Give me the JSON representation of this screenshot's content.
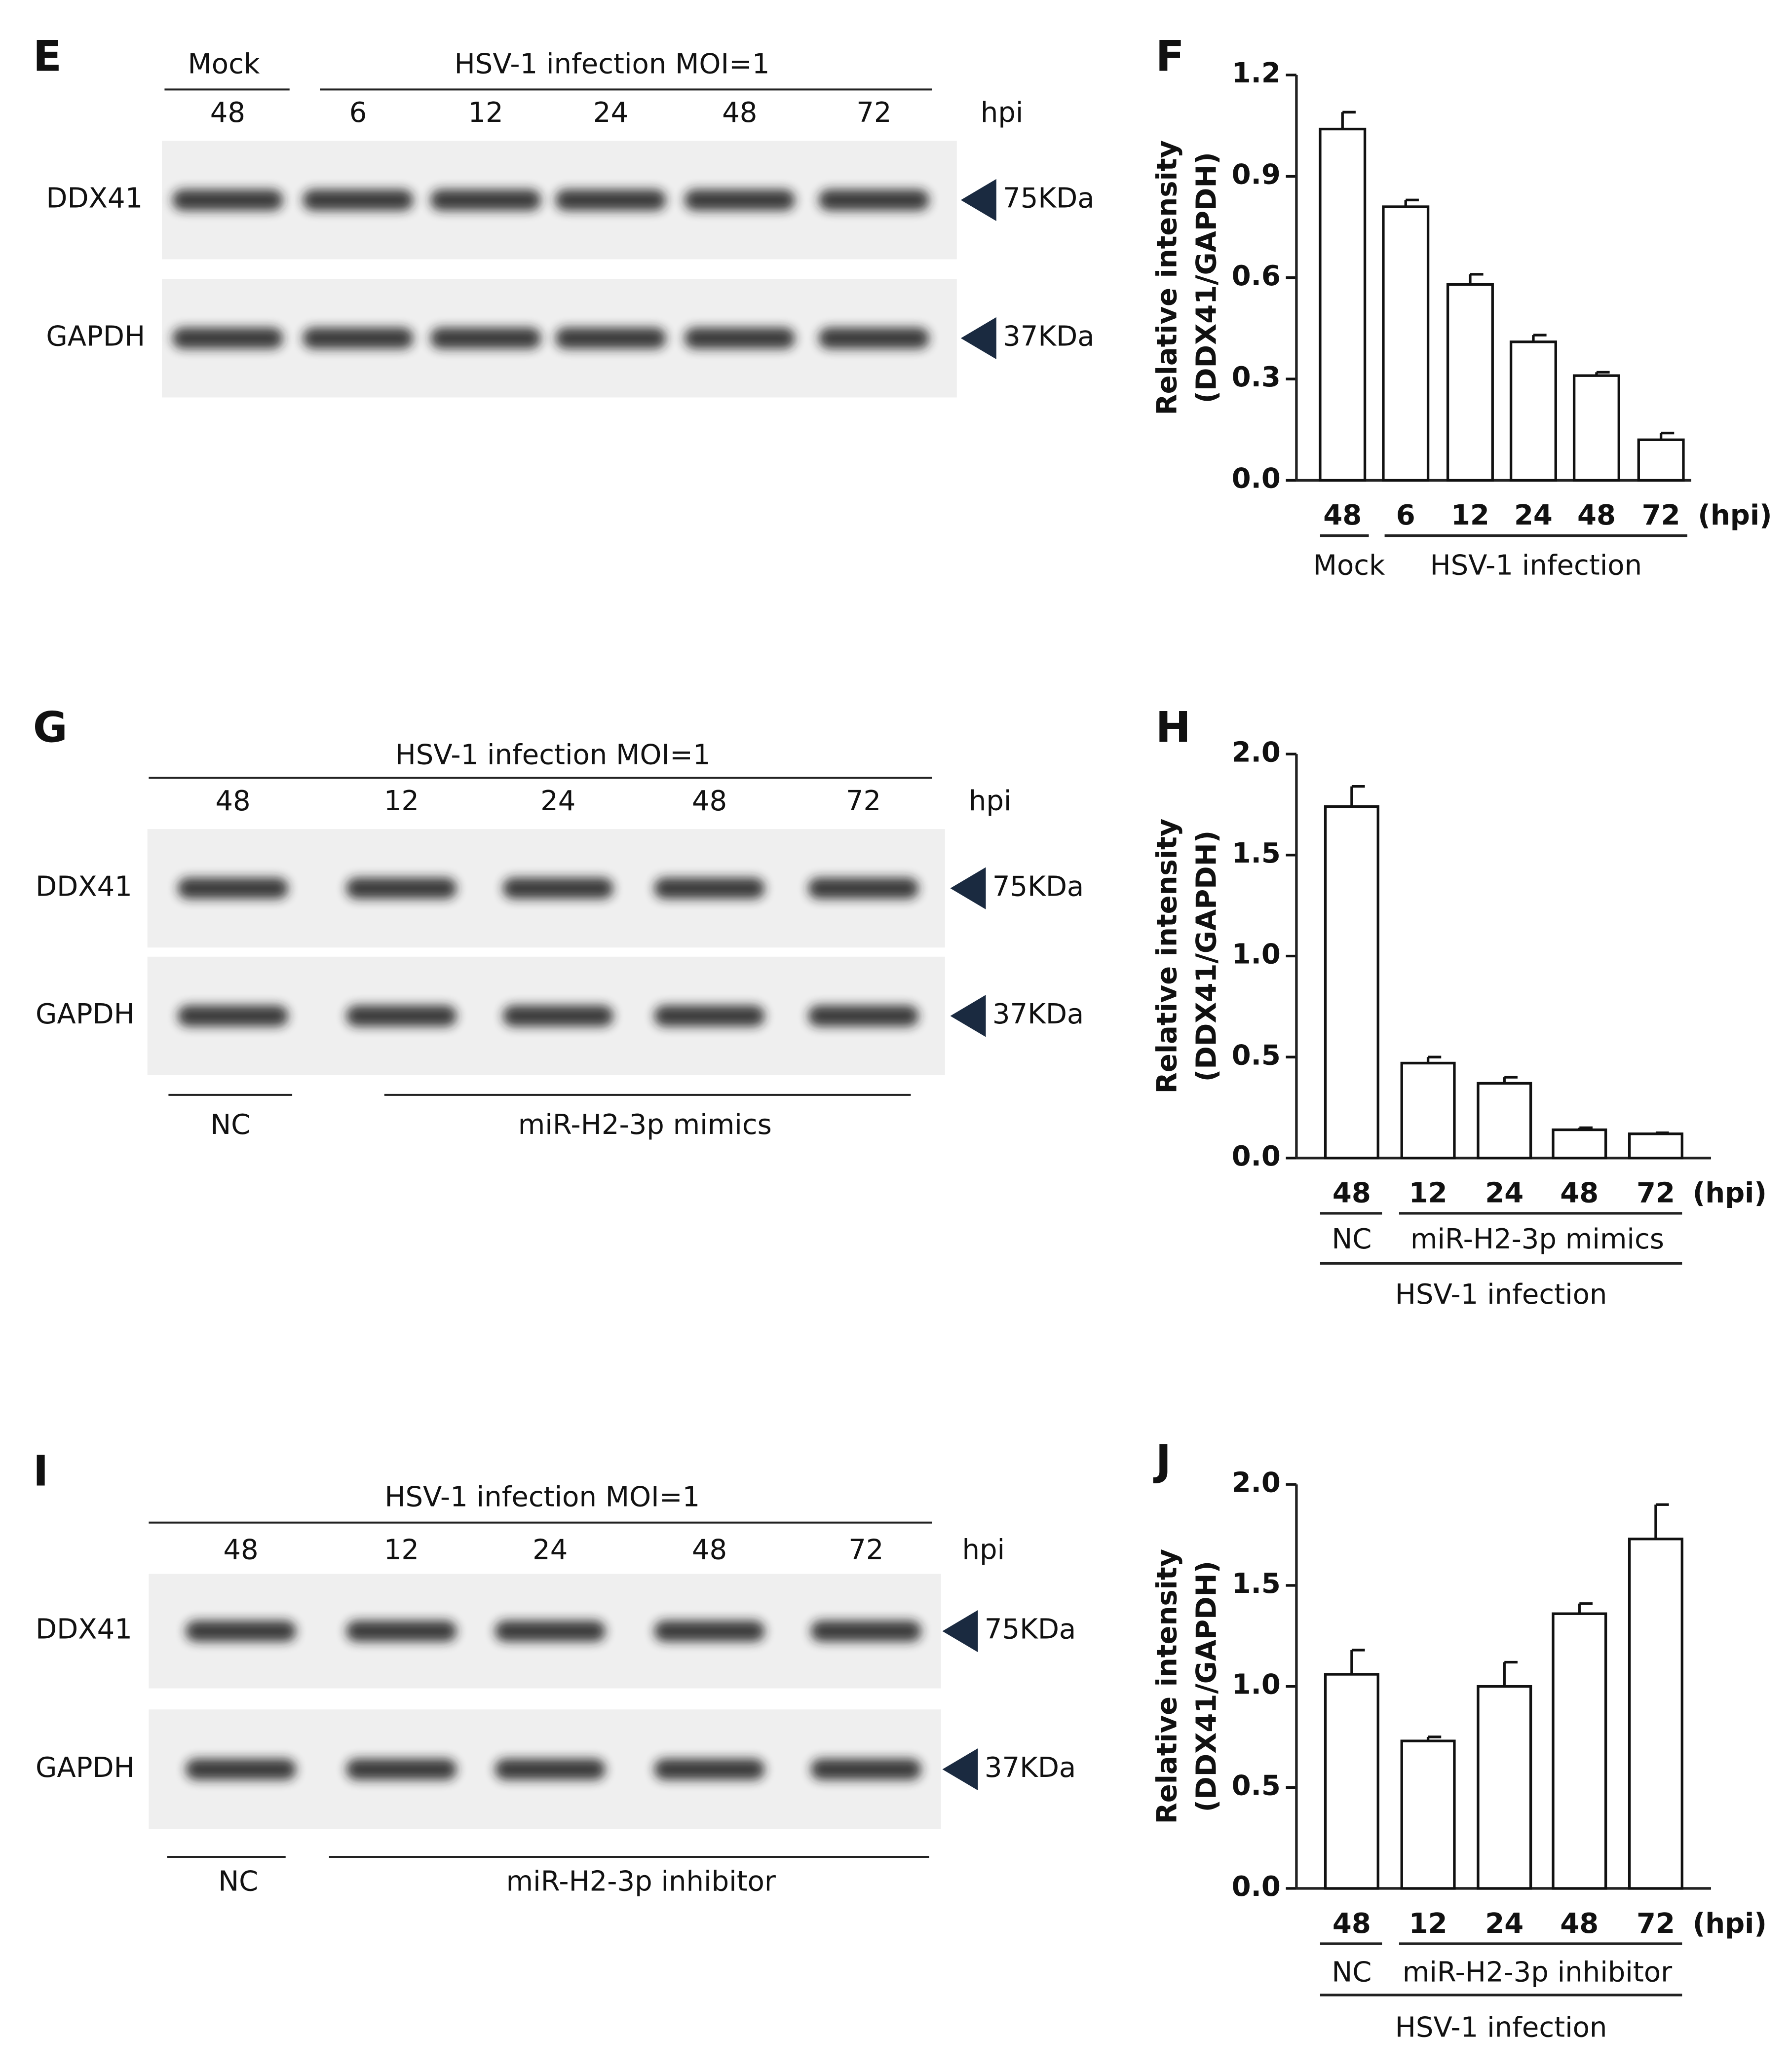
{
  "blots": [
    {
      "letter": "E",
      "top_groups": [
        "Mock",
        "HSV-1 infection MOI=1"
      ],
      "lanes": [
        "48",
        "6",
        "12",
        "24",
        "48",
        "72"
      ],
      "unit": "hpi",
      "rows": [
        {
          "protein": "DDX41",
          "size": "75KDa"
        },
        {
          "protein": "GAPDH",
          "size": "37KDa"
        }
      ]
    },
    {
      "letter": "G",
      "top_groups": [
        "HSV-1 infection MOI=1"
      ],
      "lanes": [
        "48",
        "12",
        "24",
        "48",
        "72"
      ],
      "unit": "hpi",
      "rows": [
        {
          "protein": "DDX41",
          "size": "75KDa"
        },
        {
          "protein": "GAPDH",
          "size": "37KDa"
        }
      ],
      "bottom_groups": [
        "NC",
        "miR-H2-3p mimics"
      ]
    },
    {
      "letter": "I",
      "top_groups": [
        "HSV-1 infection MOI=1"
      ],
      "lanes": [
        "48",
        "12",
        "24",
        "48",
        "72"
      ],
      "unit": "hpi",
      "rows": [
        {
          "protein": "DDX41",
          "size": "75KDa"
        },
        {
          "protein": "GAPDH",
          "size": "37KDa"
        }
      ],
      "bottom_groups": [
        "NC",
        "miR-H2-3p inhibitor"
      ]
    }
  ],
  "chart_data": [
    {
      "type": "bar",
      "title": "F",
      "ylabel": [
        "Relative intensity",
        "(DDX41/GAPDH)"
      ],
      "x_unit": "(hpi)",
      "categories": [
        "48",
        "6",
        "12",
        "24",
        "48",
        "72"
      ],
      "values": [
        1.04,
        0.81,
        0.58,
        0.41,
        0.31,
        0.12
      ],
      "errors": [
        0.05,
        0.02,
        0.03,
        0.02,
        0.01,
        0.02
      ],
      "groups": [
        "Mock",
        "HSV-1 infection"
      ],
      "color": "#ffffff",
      "ylim": [
        0,
        1.2
      ],
      "yticks": [
        {
          "value": 0,
          "label": "0.0"
        },
        0.3,
        0.6,
        0.9,
        1.2
      ]
    },
    {
      "type": "bar",
      "title": "H",
      "ylabel": [
        "Relative intensity",
        "(DDX41/GAPDH)"
      ],
      "x_unit": "(hpi)",
      "categories": [
        "48",
        "12",
        "24",
        "48",
        "72"
      ],
      "values": [
        1.74,
        0.47,
        0.37,
        0.14,
        0.12
      ],
      "errors": [
        0.1,
        0.03,
        0.03,
        0.01,
        0.005
      ],
      "groups": [
        "NC",
        "miR-H2-3p mimics"
      ],
      "outer_group": "HSV-1 infection",
      "color": "#ffffff",
      "ylim": [
        0,
        2
      ],
      "yticks": [
        {
          "value": 0,
          "label": "0.0"
        },
        0.5,
        {
          "value": 1,
          "label": "1.0"
        },
        1.5,
        {
          "value": 2,
          "label": "2.0"
        }
      ]
    },
    {
      "type": "bar",
      "title": "J",
      "ylabel": [
        "Relative intensity",
        "(DDX41/GAPDH)"
      ],
      "x_unit": "(hpi)",
      "categories": [
        "48",
        "12",
        "24",
        "48",
        "72"
      ],
      "values": [
        1.06,
        0.73,
        1.0,
        1.36,
        1.73
      ],
      "errors": [
        0.12,
        0.02,
        0.12,
        0.05,
        0.17
      ],
      "groups": [
        "NC",
        "miR-H2-3p inhibitor"
      ],
      "outer_group": "HSV-1 infection",
      "color": "#ffffff",
      "ylim": [
        0,
        2
      ],
      "yticks": [
        {
          "value": 0,
          "label": "0.0"
        },
        0.5,
        {
          "value": 1,
          "label": "1.0"
        },
        1.5,
        {
          "value": 2,
          "label": "2.0"
        }
      ]
    }
  ]
}
